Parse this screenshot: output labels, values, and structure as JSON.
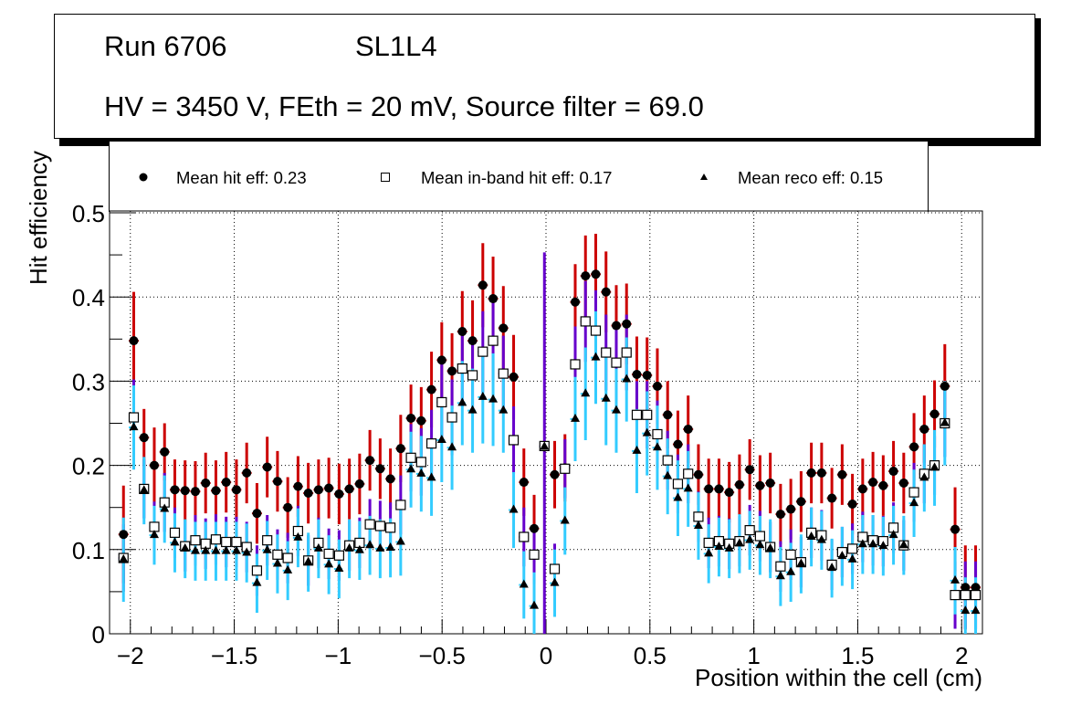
{
  "title": {
    "run": "Run 6706",
    "layer": "SL1L4",
    "conditions": "HV = 3450 V, FEth = 20 mV, Source filter = 69.0"
  },
  "legend": [
    {
      "marker": "filled-circle",
      "label": "Mean hit  eff: 0.23"
    },
    {
      "marker": "open-square",
      "label": "Mean in-band hit eff: 0.17"
    },
    {
      "marker": "filled-triangle",
      "label": "Mean reco eff: 0.15"
    }
  ],
  "chart_data": {
    "type": "scatter",
    "title": "Run 6706 SL1L4 — HV = 3450 V, FEth = 20 mV, Source filter = 69.0",
    "xlabel": "Position within the cell (cm)",
    "ylabel": "Hit efficiency",
    "xlim": [
      -2.1,
      2.1
    ],
    "ylim": [
      0,
      0.5
    ],
    "grid": true,
    "legend_position": "top",
    "xticks": [
      -2,
      -1.5,
      -1,
      -0.5,
      0,
      0.5,
      1,
      1.5,
      2
    ],
    "xtick_labels": [
      "−2",
      "−1.5",
      "−1",
      "−0.5",
      "0",
      "0.5",
      "1",
      "1.5",
      "2"
    ],
    "yticks": [
      0,
      0.1,
      0.2,
      0.3,
      0.4,
      0.5
    ],
    "ytick_labels": [
      "0",
      "0.1",
      "0.2",
      "0.3",
      "0.4",
      "0.5"
    ],
    "x_start": -2.033,
    "x_step": 0.0494,
    "series": [
      {
        "name": "Mean hit  eff: 0.23",
        "marker": "filled-circle",
        "color": "#000000",
        "error_color": "#cc0000",
        "values": [
          0.118,
          0.348,
          0.233,
          0.2,
          0.216,
          0.171,
          0.17,
          0.169,
          0.179,
          0.17,
          0.18,
          0.171,
          0.191,
          0.143,
          0.198,
          0.181,
          0.15,
          0.175,
          0.167,
          0.171,
          0.173,
          0.166,
          0.172,
          0.178,
          0.206,
          0.196,
          0.184,
          0.22,
          0.256,
          0.253,
          0.29,
          0.325,
          0.312,
          0.359,
          0.348,
          0.414,
          0.398,
          0.363,
          0.305,
          0.18,
          0.125,
          0.222,
          0.189,
          0.197,
          0.394,
          0.425,
          0.427,
          0.406,
          0.366,
          0.368,
          0.308,
          0.307,
          0.294,
          0.26,
          0.225,
          0.243,
          0.189,
          0.172,
          0.172,
          0.168,
          0.177,
          0.195,
          0.176,
          0.179,
          0.142,
          0.148,
          0.157,
          0.191,
          0.191,
          0.161,
          0.189,
          0.154,
          0.172,
          0.18,
          0.176,
          0.193,
          0.179,
          0.222,
          0.243,
          0.261,
          0.294,
          0.124,
          0.055,
          0.055
        ],
        "errors": [
          0.058,
          0.058,
          0.034,
          0.045,
          0.034,
          0.036,
          0.036,
          0.036,
          0.036,
          0.036,
          0.036,
          0.036,
          0.036,
          0.036,
          0.036,
          0.036,
          0.036,
          0.036,
          0.036,
          0.036,
          0.036,
          0.036,
          0.036,
          0.036,
          0.036,
          0.036,
          0.036,
          0.04,
          0.04,
          0.04,
          0.045,
          0.045,
          0.045,
          0.048,
          0.048,
          0.05,
          0.05,
          0.05,
          0.05,
          0.04,
          0.04,
          0.0,
          0.04,
          0.04,
          0.045,
          0.048,
          0.048,
          0.048,
          0.048,
          0.048,
          0.045,
          0.045,
          0.045,
          0.04,
          0.04,
          0.04,
          0.036,
          0.036,
          0.036,
          0.036,
          0.036,
          0.036,
          0.036,
          0.036,
          0.036,
          0.036,
          0.036,
          0.036,
          0.036,
          0.036,
          0.036,
          0.036,
          0.036,
          0.036,
          0.036,
          0.036,
          0.036,
          0.04,
          0.04,
          0.04,
          0.05,
          0.05,
          0.05,
          0.05
        ]
      },
      {
        "name": "Mean in-band hit eff: 0.17",
        "marker": "open-square",
        "color": "#000000",
        "error_color": "#6600cc",
        "values": [
          0.09,
          0.257,
          0.172,
          0.127,
          0.156,
          0.12,
          0.104,
          0.111,
          0.107,
          0.112,
          0.109,
          0.109,
          0.103,
          0.075,
          0.111,
          0.094,
          0.09,
          0.122,
          0.087,
          0.108,
          0.095,
          0.093,
          0.105,
          0.108,
          0.13,
          0.128,
          0.126,
          0.153,
          0.209,
          0.204,
          0.226,
          0.275,
          0.257,
          0.315,
          0.307,
          0.335,
          0.348,
          0.309,
          0.23,
          0.115,
          0.094,
          0.223,
          0.077,
          0.196,
          0.32,
          0.371,
          0.36,
          0.334,
          0.322,
          0.334,
          0.26,
          0.26,
          0.237,
          0.206,
          0.178,
          0.19,
          0.139,
          0.108,
          0.11,
          0.107,
          0.11,
          0.123,
          0.116,
          0.103,
          0.08,
          0.094,
          0.085,
          0.12,
          0.117,
          0.082,
          0.097,
          0.101,
          0.115,
          0.111,
          0.11,
          0.126,
          0.105,
          0.168,
          0.19,
          0.2,
          0.25,
          0.046,
          0.046,
          0.046
        ],
        "errors": [
          0.04,
          0.045,
          0.035,
          0.03,
          0.035,
          0.03,
          0.03,
          0.03,
          0.03,
          0.03,
          0.03,
          0.03,
          0.03,
          0.03,
          0.03,
          0.03,
          0.03,
          0.03,
          0.03,
          0.03,
          0.03,
          0.03,
          0.03,
          0.03,
          0.03,
          0.03,
          0.03,
          0.035,
          0.04,
          0.04,
          0.04,
          0.045,
          0.045,
          0.045,
          0.045,
          0.048,
          0.048,
          0.045,
          0.04,
          0.035,
          0.035,
          0.23,
          0.03,
          0.035,
          0.045,
          0.048,
          0.048,
          0.045,
          0.045,
          0.045,
          0.04,
          0.04,
          0.04,
          0.035,
          0.035,
          0.035,
          0.03,
          0.03,
          0.03,
          0.03,
          0.03,
          0.03,
          0.03,
          0.03,
          0.03,
          0.03,
          0.03,
          0.03,
          0.03,
          0.03,
          0.03,
          0.03,
          0.03,
          0.03,
          0.03,
          0.03,
          0.03,
          0.035,
          0.035,
          0.035,
          0.04,
          0.04,
          0.04,
          0.04
        ]
      },
      {
        "name": "Mean reco eff: 0.15",
        "marker": "filled-triangle",
        "color": "#000000",
        "error_color": "#33ccff",
        "values": [
          0.088,
          0.245,
          0.17,
          0.117,
          0.148,
          0.108,
          0.101,
          0.098,
          0.098,
          0.098,
          0.098,
          0.098,
          0.096,
          0.06,
          0.099,
          0.083,
          0.075,
          0.114,
          0.085,
          0.101,
          0.082,
          0.077,
          0.101,
          0.099,
          0.105,
          0.101,
          0.102,
          0.109,
          0.195,
          0.19,
          0.185,
          0.23,
          0.221,
          0.274,
          0.265,
          0.281,
          0.278,
          0.265,
          0.147,
          0.058,
          0.033,
          0.222,
          0.06,
          0.134,
          0.255,
          0.285,
          0.328,
          0.279,
          0.265,
          0.302,
          0.217,
          0.238,
          0.221,
          0.187,
          0.161,
          0.172,
          0.128,
          0.095,
          0.103,
          0.101,
          0.107,
          0.111,
          0.105,
          0.101,
          0.068,
          0.073,
          0.083,
          0.115,
          0.111,
          0.078,
          0.092,
          0.088,
          0.106,
          0.106,
          0.104,
          0.117,
          0.105,
          0.155,
          0.185,
          0.197,
          0.25,
          0.063,
          0.027,
          0.027
        ],
        "errors": [
          0.05,
          0.05,
          0.04,
          0.035,
          0.04,
          0.035,
          0.035,
          0.035,
          0.035,
          0.035,
          0.035,
          0.035,
          0.035,
          0.035,
          0.035,
          0.035,
          0.035,
          0.035,
          0.035,
          0.035,
          0.035,
          0.035,
          0.035,
          0.035,
          0.035,
          0.035,
          0.035,
          0.04,
          0.045,
          0.045,
          0.045,
          0.05,
          0.05,
          0.05,
          0.05,
          0.055,
          0.055,
          0.05,
          0.045,
          0.04,
          0.04,
          0.0,
          0.04,
          0.04,
          0.05,
          0.055,
          0.055,
          0.055,
          0.05,
          0.05,
          0.05,
          0.05,
          0.05,
          0.045,
          0.045,
          0.045,
          0.04,
          0.035,
          0.035,
          0.035,
          0.035,
          0.035,
          0.035,
          0.035,
          0.035,
          0.035,
          0.035,
          0.035,
          0.035,
          0.035,
          0.035,
          0.035,
          0.035,
          0.035,
          0.035,
          0.035,
          0.035,
          0.04,
          0.04,
          0.045,
          0.05,
          0.04,
          0.04,
          0.04
        ]
      }
    ]
  }
}
